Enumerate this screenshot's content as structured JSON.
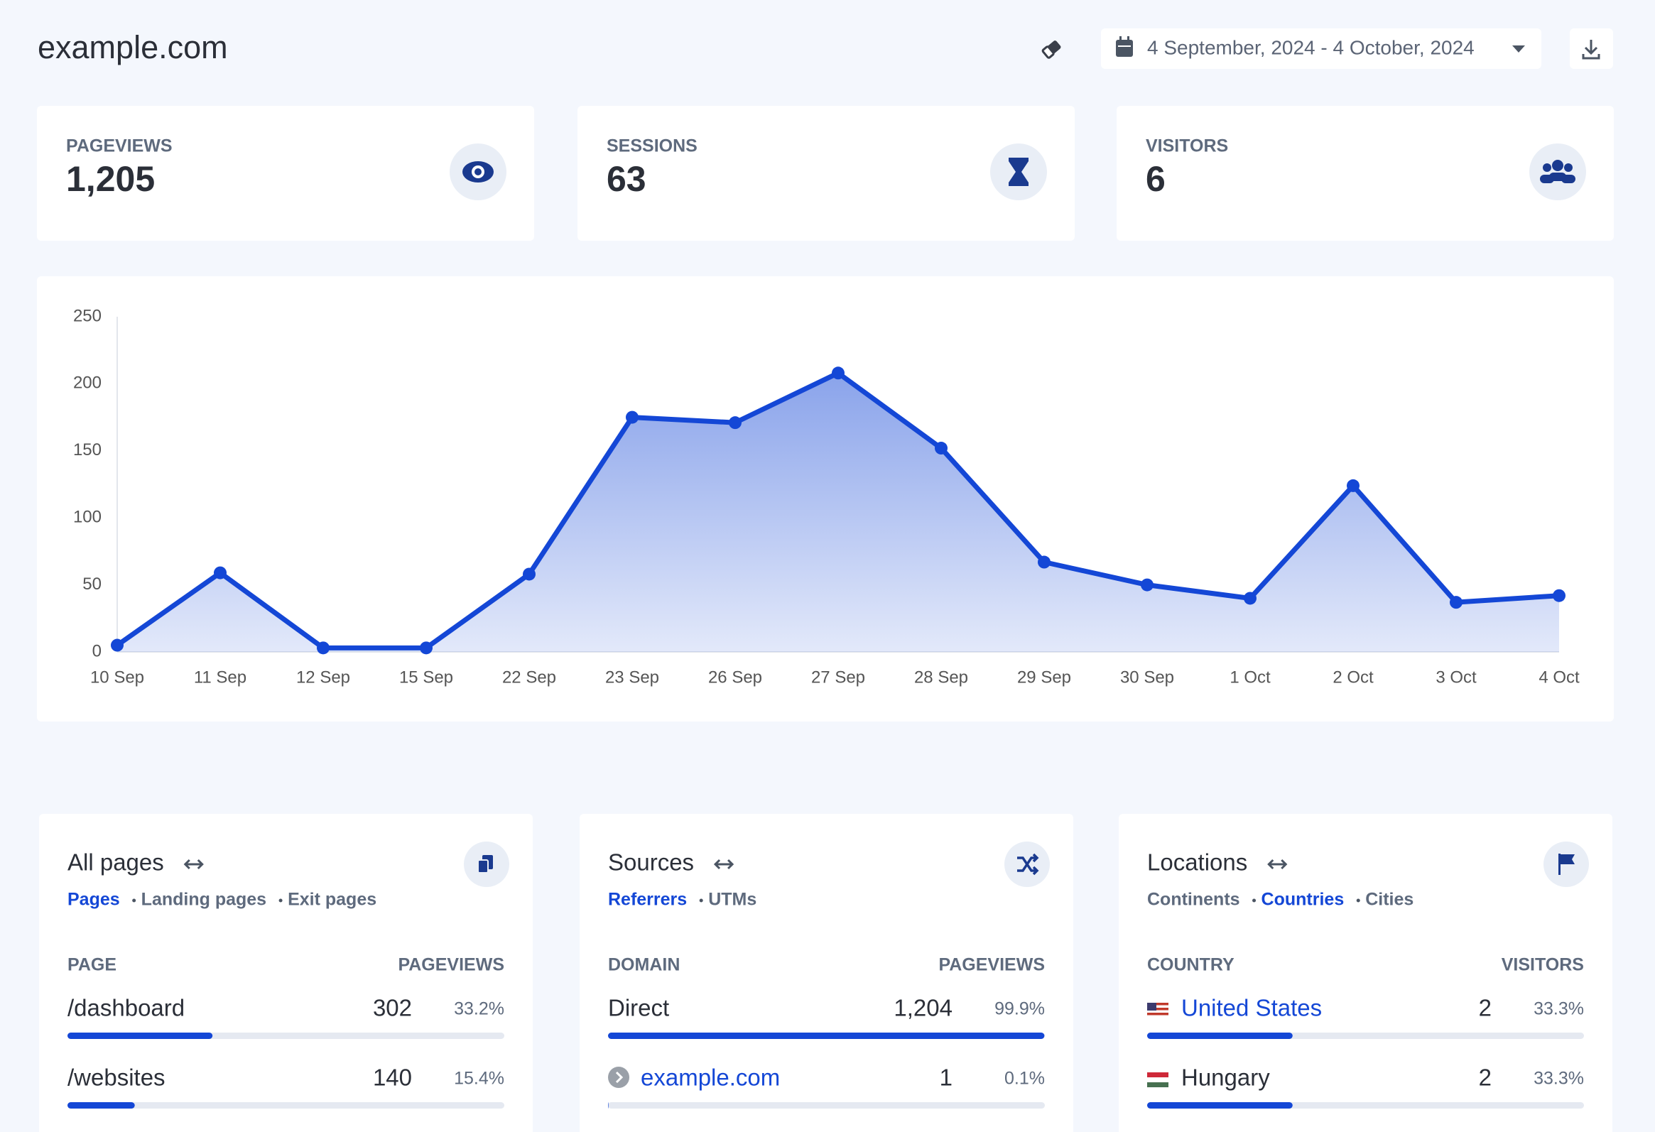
{
  "header": {
    "site": "example.com",
    "date_range": "4 September, 2024 - 4 October, 2024"
  },
  "stats": [
    {
      "label": "PAGEVIEWS",
      "value": "1,205"
    },
    {
      "label": "SESSIONS",
      "value": "63"
    },
    {
      "label": "VISITORS",
      "value": "6"
    }
  ],
  "chart_data": {
    "type": "line",
    "categories": [
      "10 Sep",
      "11 Sep",
      "12 Sep",
      "15 Sep",
      "22 Sep",
      "23 Sep",
      "26 Sep",
      "27 Sep",
      "28 Sep",
      "29 Sep",
      "30 Sep",
      "1 Oct",
      "2 Oct",
      "3 Oct",
      "4 Oct"
    ],
    "values": [
      5,
      59,
      3,
      3,
      58,
      175,
      171,
      208,
      152,
      67,
      50,
      40,
      124,
      37,
      42
    ],
    "color": "#1447d6",
    "area": true,
    "grid": false,
    "ylim": [
      0,
      250
    ],
    "yticks": [
      0,
      50,
      100,
      150,
      200,
      250
    ]
  },
  "panels": [
    {
      "title": "All pages",
      "tabs": [
        "Pages",
        "Landing pages",
        "Exit pages"
      ],
      "active_tab": 0,
      "columns": [
        "PAGE",
        "PAGEVIEWS"
      ],
      "rows": [
        {
          "label": "/dashboard",
          "count": "302",
          "share": "33.2%",
          "link": false
        },
        {
          "label": "/websites",
          "count": "140",
          "share": "15.4%",
          "link": false
        }
      ]
    },
    {
      "title": "Sources",
      "tabs": [
        "Referrers",
        "UTMs"
      ],
      "active_tab": 0,
      "columns": [
        "DOMAIN",
        "PAGEVIEWS"
      ],
      "rows": [
        {
          "label": "Direct",
          "count": "1,204",
          "share": "99.9%",
          "link": false
        },
        {
          "label": "example.com",
          "count": "1",
          "share": "0.1%",
          "link": true
        }
      ]
    },
    {
      "title": "Locations",
      "tabs": [
        "Continents",
        "Countries",
        "Cities"
      ],
      "active_tab": 1,
      "columns": [
        "COUNTRY",
        "VISITORS"
      ],
      "rows": [
        {
          "label": "United States",
          "count": "2",
          "share": "33.3%",
          "link": true
        },
        {
          "label": "Hungary",
          "count": "2",
          "share": "33.3%",
          "link": false
        }
      ]
    }
  ]
}
